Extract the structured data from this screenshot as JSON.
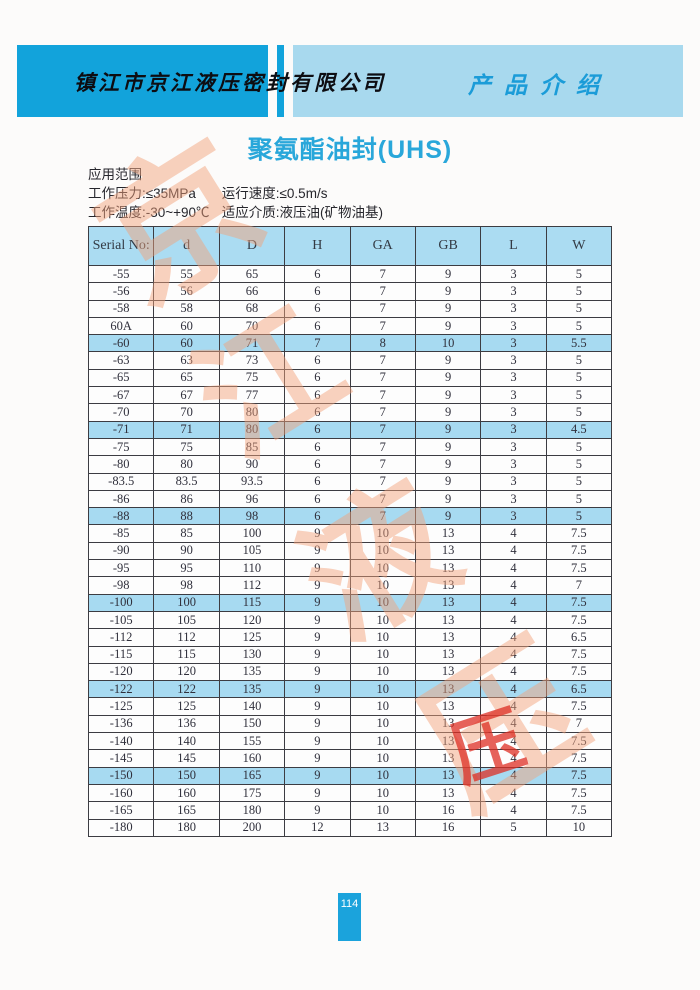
{
  "header": {
    "company_name": "镇江市京江液压密封有限公司",
    "section_title": "产品介绍",
    "dark_blue": "#12a3db",
    "light_blue": "#a8d9ee"
  },
  "title": "聚氨酯油封(UHS)",
  "specs": {
    "heading": "应用范围",
    "pressure": "工作压力:≤35MPa",
    "speed": "运行速度:≤0.5m/s",
    "temperature": "工作温度:-30~+90℃",
    "medium": "适应介质:液压油(矿物油基)"
  },
  "watermark": {
    "chars": [
      "京",
      "江",
      "液",
      "压"
    ],
    "seal": "压",
    "color": "#f3a07a",
    "seal_color": "#de2d23"
  },
  "table": {
    "columns": [
      "Serial No:",
      "d",
      "D",
      "H",
      "GA",
      "GB",
      "L",
      "W"
    ],
    "highlight_color": "#a7daf1",
    "header_color": "#abdcf2",
    "highlighted_row_indexes": [
      4,
      9,
      14,
      19,
      24,
      29
    ],
    "rows": [
      [
        "-55",
        "55",
        "65",
        "6",
        "7",
        "9",
        "3",
        "5"
      ],
      [
        "-56",
        "56",
        "66",
        "6",
        "7",
        "9",
        "3",
        "5"
      ],
      [
        "-58",
        "58",
        "68",
        "6",
        "7",
        "9",
        "3",
        "5"
      ],
      [
        "60A",
        "60",
        "70",
        "6",
        "7",
        "9",
        "3",
        "5"
      ],
      [
        "-60",
        "60",
        "71",
        "7",
        "8",
        "10",
        "3",
        "5.5"
      ],
      [
        "-63",
        "63",
        "73",
        "6",
        "7",
        "9",
        "3",
        "5"
      ],
      [
        "-65",
        "65",
        "75",
        "6",
        "7",
        "9",
        "3",
        "5"
      ],
      [
        "-67",
        "67",
        "77",
        "6",
        "7",
        "9",
        "3",
        "5"
      ],
      [
        "-70",
        "70",
        "80",
        "6",
        "7",
        "9",
        "3",
        "5"
      ],
      [
        "-71",
        "71",
        "80",
        "6",
        "7",
        "9",
        "3",
        "4.5"
      ],
      [
        "-75",
        "75",
        "85",
        "6",
        "7",
        "9",
        "3",
        "5"
      ],
      [
        "-80",
        "80",
        "90",
        "6",
        "7",
        "9",
        "3",
        "5"
      ],
      [
        "-83.5",
        "83.5",
        "93.5",
        "6",
        "7",
        "9",
        "3",
        "5"
      ],
      [
        "-86",
        "86",
        "96",
        "6",
        "7",
        "9",
        "3",
        "5"
      ],
      [
        "-88",
        "88",
        "98",
        "6",
        "7",
        "9",
        "3",
        "5"
      ],
      [
        "-85",
        "85",
        "100",
        "9",
        "10",
        "13",
        "4",
        "7.5"
      ],
      [
        "-90",
        "90",
        "105",
        "9",
        "10",
        "13",
        "4",
        "7.5"
      ],
      [
        "-95",
        "95",
        "110",
        "9",
        "10",
        "13",
        "4",
        "7.5"
      ],
      [
        "-98",
        "98",
        "112",
        "9",
        "10",
        "13",
        "4",
        "7"
      ],
      [
        "-100",
        "100",
        "115",
        "9",
        "10",
        "13",
        "4",
        "7.5"
      ],
      [
        "-105",
        "105",
        "120",
        "9",
        "10",
        "13",
        "4",
        "7.5"
      ],
      [
        "-112",
        "112",
        "125",
        "9",
        "10",
        "13",
        "4",
        "6.5"
      ],
      [
        "-115",
        "115",
        "130",
        "9",
        "10",
        "13",
        "4",
        "7.5"
      ],
      [
        "-120",
        "120",
        "135",
        "9",
        "10",
        "13",
        "4",
        "7.5"
      ],
      [
        "-122",
        "122",
        "135",
        "9",
        "10",
        "13",
        "4",
        "6.5"
      ],
      [
        "-125",
        "125",
        "140",
        "9",
        "10",
        "13",
        "4",
        "7.5"
      ],
      [
        "-136",
        "136",
        "150",
        "9",
        "10",
        "13",
        "4",
        "7"
      ],
      [
        "-140",
        "140",
        "155",
        "9",
        "10",
        "13",
        "4",
        "7.5"
      ],
      [
        "-145",
        "145",
        "160",
        "9",
        "10",
        "13",
        "4",
        "7.5"
      ],
      [
        "-150",
        "150",
        "165",
        "9",
        "10",
        "13",
        "4",
        "7.5"
      ],
      [
        "-160",
        "160",
        "175",
        "9",
        "10",
        "13",
        "4",
        "7.5"
      ],
      [
        "-165",
        "165",
        "180",
        "9",
        "10",
        "16",
        "4",
        "7.5"
      ],
      [
        "-180",
        "180",
        "200",
        "12",
        "13",
        "16",
        "5",
        "10"
      ]
    ]
  },
  "page_number": "114"
}
